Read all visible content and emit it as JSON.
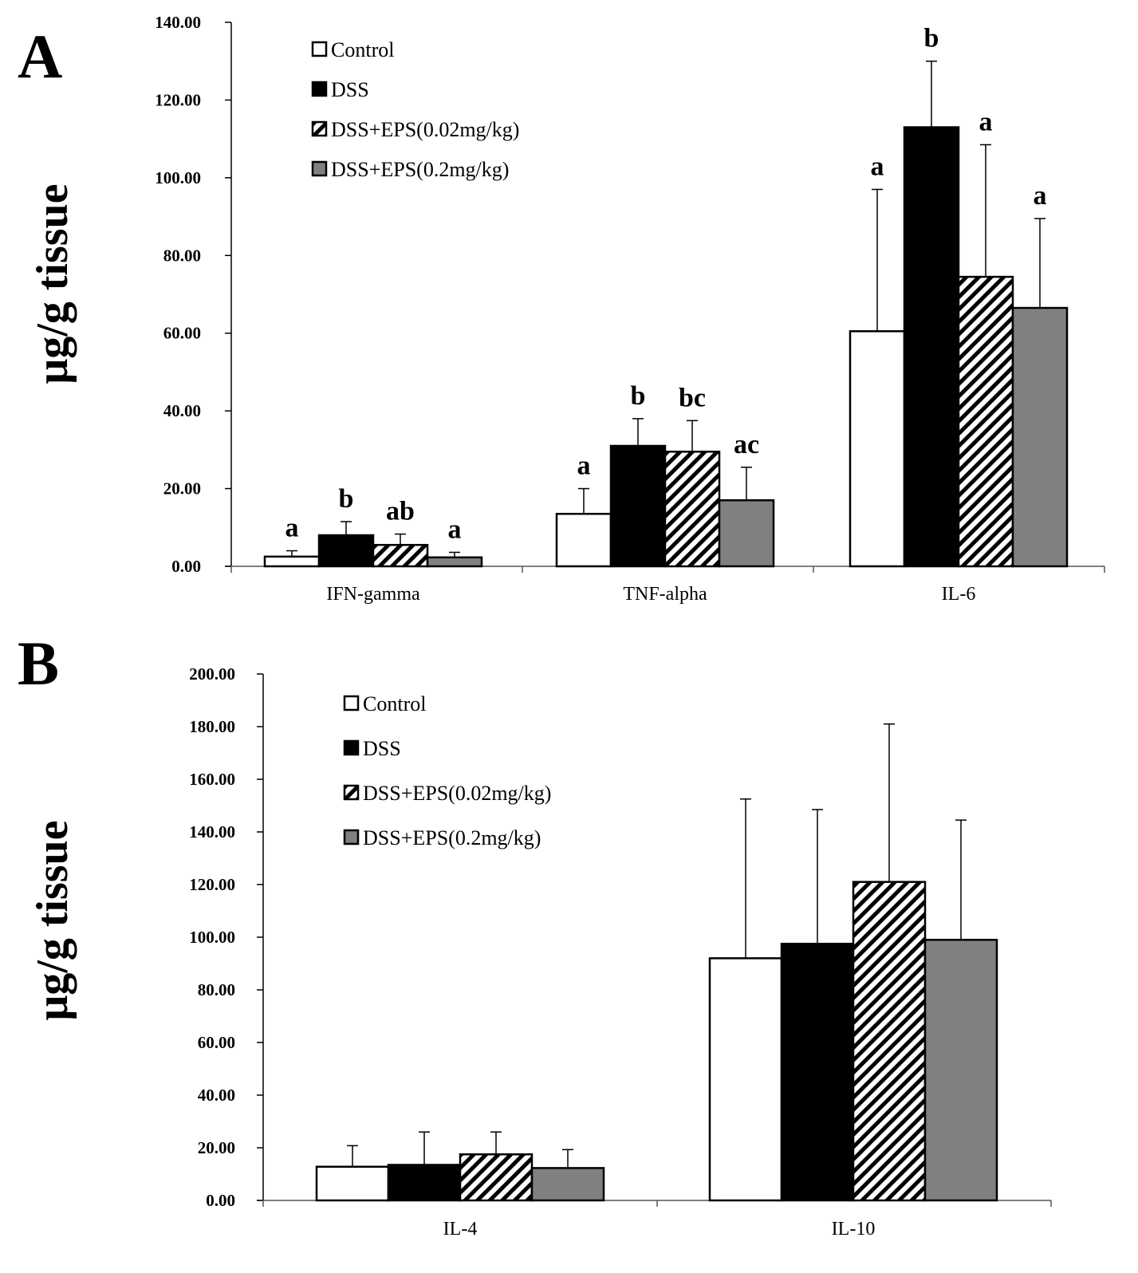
{
  "chart_data": [
    {
      "panel": "A",
      "type": "bar",
      "ylabel": "μg/g tissue",
      "ylim": [
        0,
        140
      ],
      "yticks": [
        "0.00",
        "20.00",
        "40.00",
        "60.00",
        "80.00",
        "100.00",
        "120.00",
        "140.00"
      ],
      "categories": [
        "IFN-gamma",
        "TNF-alpha",
        "IL-6"
      ],
      "legend": [
        "Control",
        "DSS",
        "DSS+EPS(0.02mg/kg)",
        "DSS+EPS(0.2mg/kg)"
      ],
      "series": [
        {
          "name": "Control",
          "style": "white",
          "values": [
            2.5,
            13.5,
            60.5
          ],
          "errors": [
            1.5,
            6.5,
            36.5
          ],
          "labels": [
            "a",
            "a",
            "a"
          ]
        },
        {
          "name": "DSS",
          "style": "black",
          "values": [
            8.0,
            31.0,
            113.0
          ],
          "errors": [
            3.5,
            7.0,
            17.0
          ],
          "labels": [
            "b",
            "b",
            "b"
          ]
        },
        {
          "name": "DSS+EPS(0.02mg/kg)",
          "style": "hatch",
          "values": [
            5.5,
            29.5,
            74.5
          ],
          "errors": [
            2.8,
            8.0,
            34.0
          ],
          "labels": [
            "ab",
            "bc",
            "a"
          ]
        },
        {
          "name": "DSS+EPS(0.2mg/kg)",
          "style": "gray",
          "values": [
            2.3,
            17.0,
            66.5
          ],
          "errors": [
            1.3,
            8.5,
            23.0
          ],
          "labels": [
            "a",
            "ac",
            "a"
          ]
        }
      ]
    },
    {
      "panel": "B",
      "type": "bar",
      "ylabel": "μg/g tissue",
      "ylim": [
        0,
        200
      ],
      "yticks": [
        "0.00",
        "20.00",
        "40.00",
        "60.00",
        "80.00",
        "100.00",
        "120.00",
        "140.00",
        "160.00",
        "180.00",
        "200.00"
      ],
      "categories": [
        "IL-4",
        "IL-10"
      ],
      "legend": [
        "Control",
        "DSS",
        "DSS+EPS(0.02mg/kg)",
        "DSS+EPS(0.2mg/kg)"
      ],
      "series": [
        {
          "name": "Control",
          "style": "white",
          "values": [
            12.8,
            92.0
          ],
          "errors": [
            8.0,
            60.5
          ],
          "labels": [
            "",
            ""
          ]
        },
        {
          "name": "DSS",
          "style": "black",
          "values": [
            13.5,
            97.5
          ],
          "errors": [
            12.5,
            51.0
          ],
          "labels": [
            "",
            ""
          ]
        },
        {
          "name": "DSS+EPS(0.02mg/kg)",
          "style": "hatch",
          "values": [
            17.5,
            121.0
          ],
          "errors": [
            8.5,
            60.0
          ],
          "labels": [
            "",
            ""
          ]
        },
        {
          "name": "DSS+EPS(0.2mg/kg)",
          "style": "gray",
          "values": [
            12.3,
            99.0
          ],
          "errors": [
            7.0,
            45.5
          ],
          "labels": [
            "",
            ""
          ]
        }
      ]
    }
  ]
}
